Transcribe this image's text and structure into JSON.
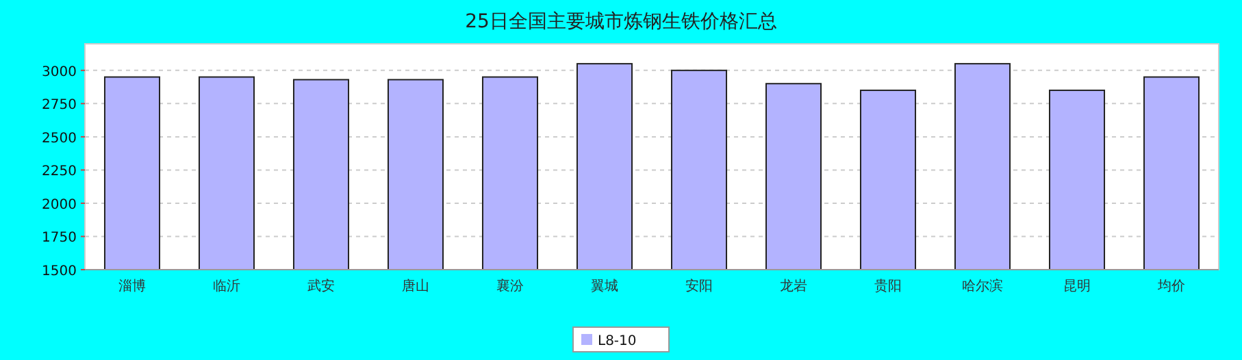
{
  "chart_data": {
    "type": "bar",
    "title": "25日全国主要城市炼钢生铁价格汇总",
    "categories": [
      "淄博",
      "临沂",
      "武安",
      "唐山",
      "襄汾",
      "翼城",
      "安阳",
      "龙岩",
      "贵阳",
      "哈尔滨",
      "昆明",
      "均价"
    ],
    "series": [
      {
        "name": "L8-10",
        "color": "#b3b3ff",
        "values": [
          2950,
          2950,
          2930,
          2930,
          2950,
          3050,
          3000,
          2900,
          2850,
          3050,
          2850,
          2950
        ]
      }
    ],
    "ylim": [
      1500,
      3200
    ],
    "yticks": [
      1500,
      1750,
      2000,
      2250,
      2500,
      2750,
      3000
    ],
    "grid": "y",
    "legend": "bottom"
  }
}
